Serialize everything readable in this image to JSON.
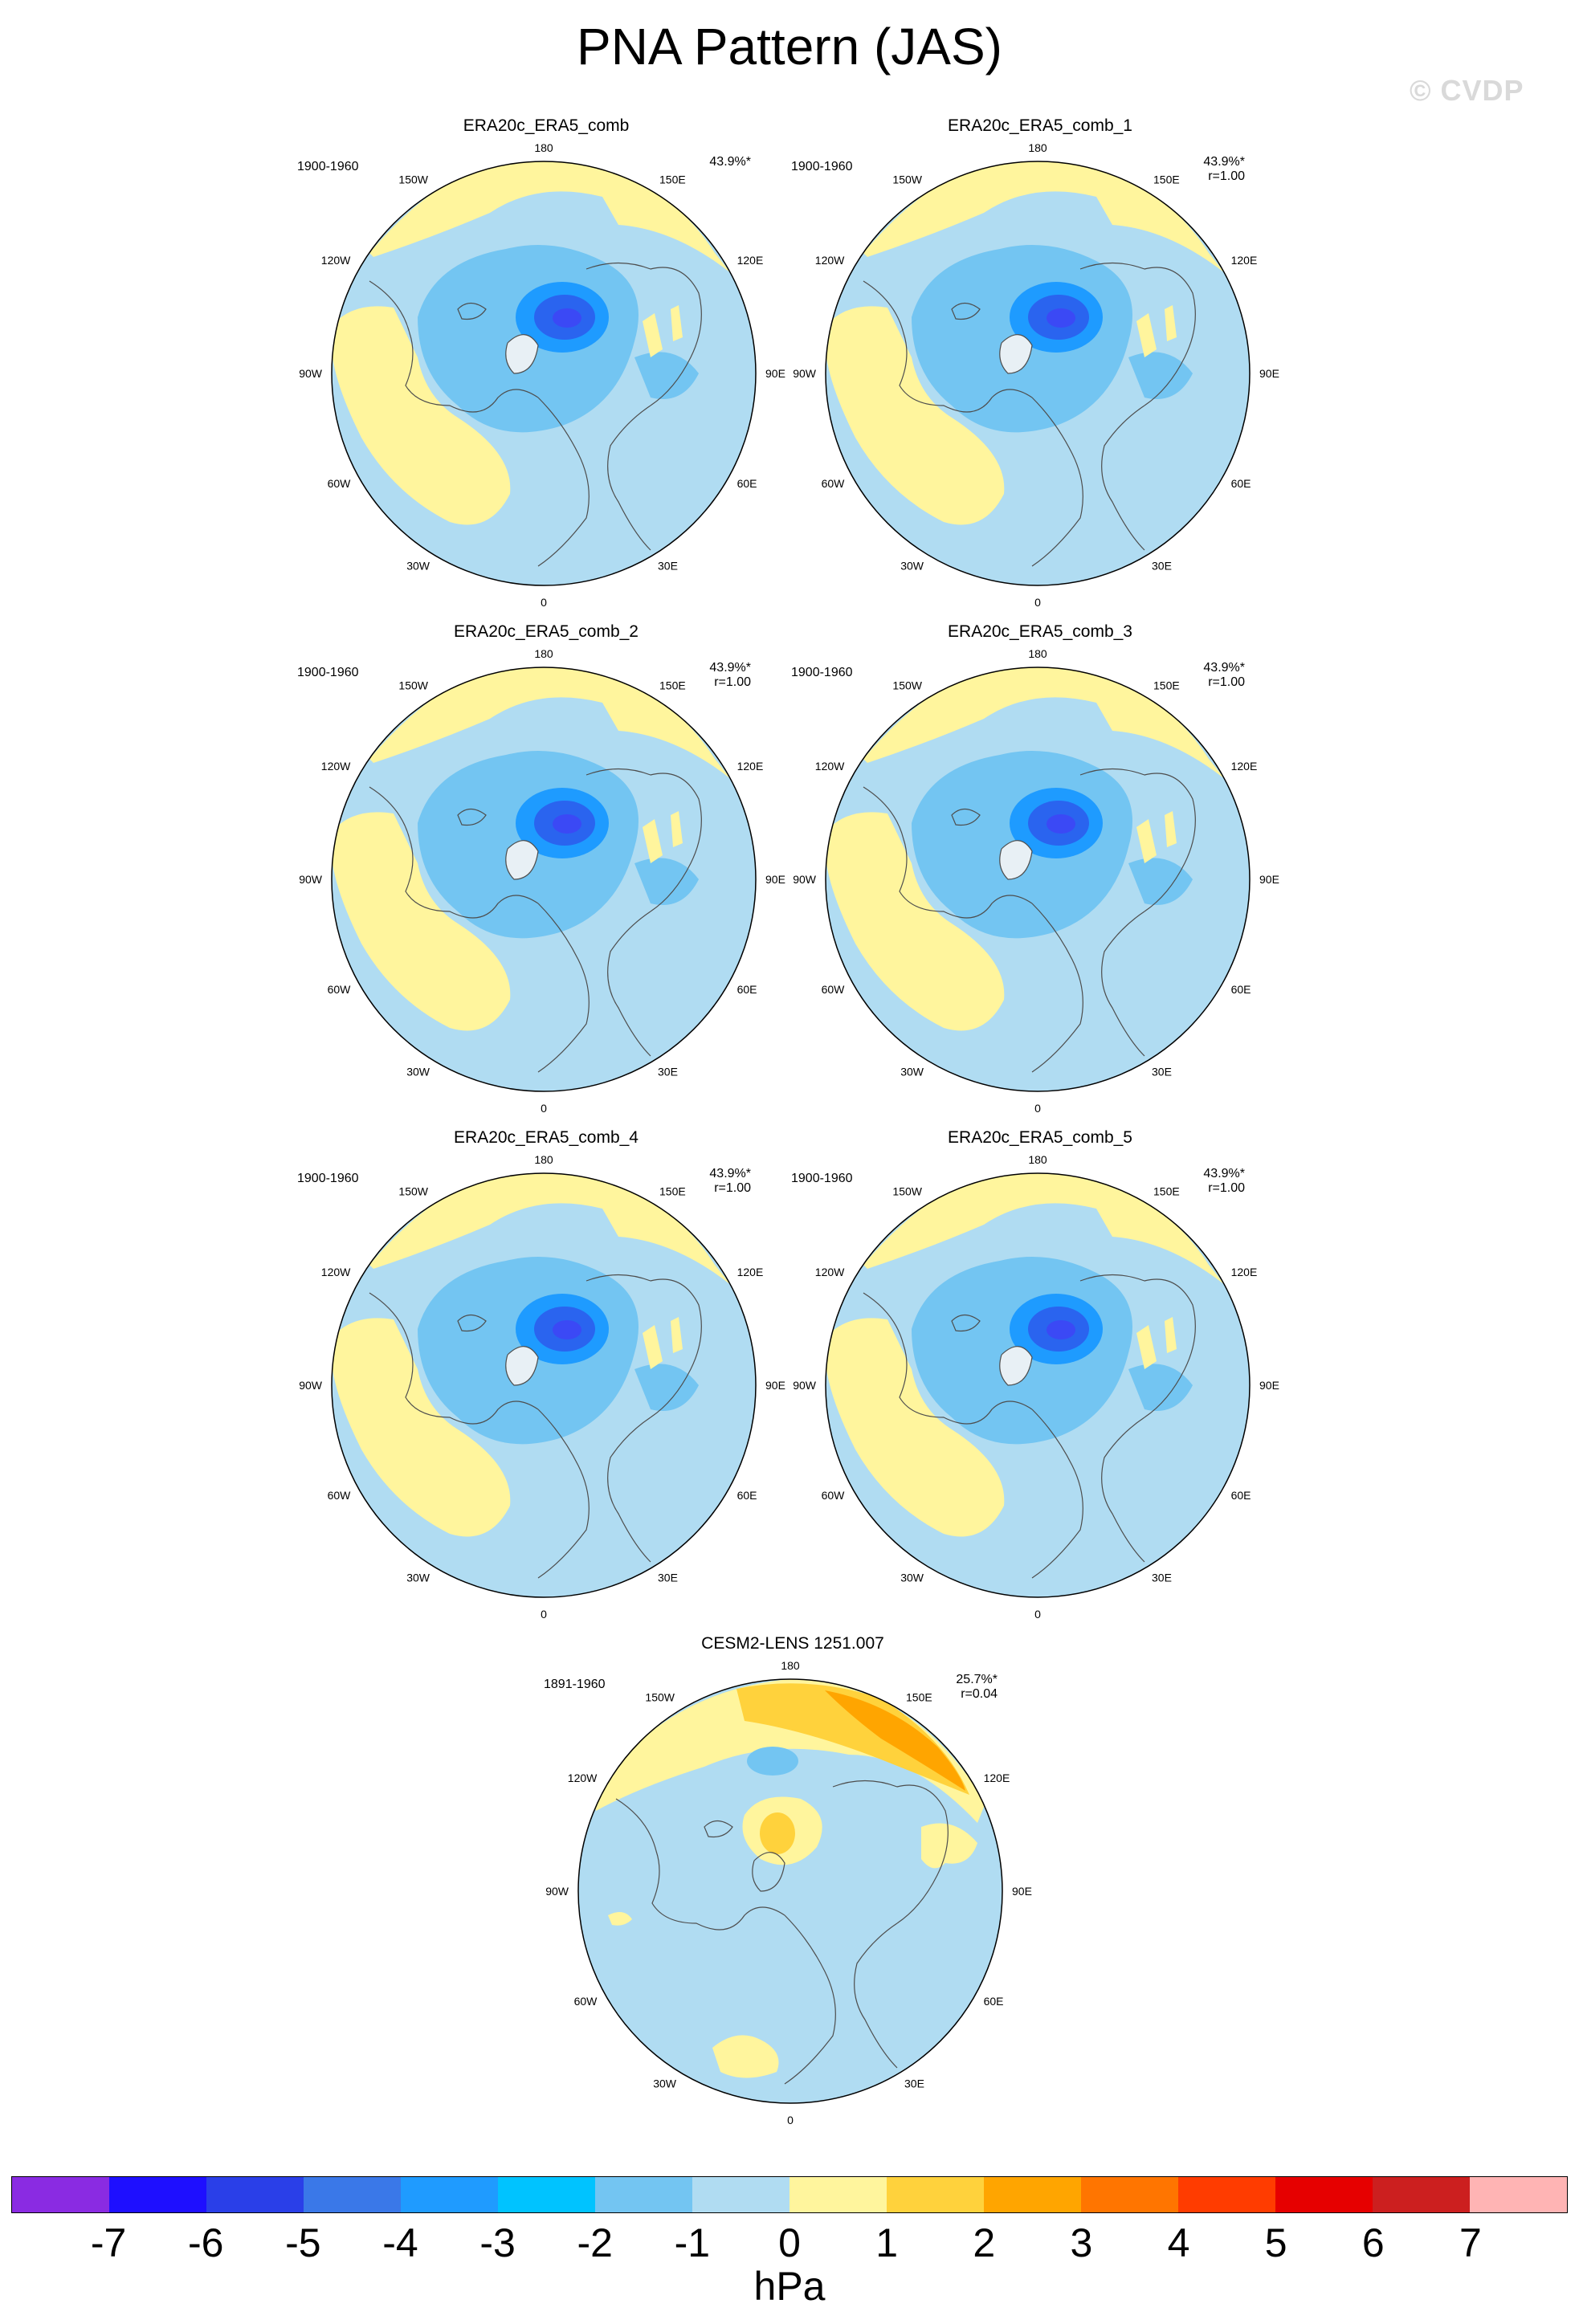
{
  "title": "PNA Pattern (JAS)",
  "watermark": "© CVDP",
  "colors": {
    "light_blue": "#b0dcf2",
    "mid_blue": "#73c5f2",
    "blue": "#1e9bff",
    "deep_blue": "#2a64ef",
    "core_blue": "#3b49f5",
    "light_yellow": "#fff59d",
    "yellow": "#ffd23c",
    "orange": "#ffa500",
    "coast": "#4d4d4d"
  },
  "panels": [
    {
      "title": "ERA20c_ERA5_comb",
      "period": "1900-1960",
      "pct": "43.9%*",
      "r": "",
      "pattern": "obs"
    },
    {
      "title": "ERA20c_ERA5_comb_1",
      "period": "1900-1960",
      "pct": "43.9%*",
      "r": "r=1.00",
      "pattern": "obs"
    },
    {
      "title": "ERA20c_ERA5_comb_2",
      "period": "1900-1960",
      "pct": "43.9%*",
      "r": "r=1.00",
      "pattern": "obs"
    },
    {
      "title": "ERA20c_ERA5_comb_3",
      "period": "1900-1960",
      "pct": "43.9%*",
      "r": "r=1.00",
      "pattern": "obs"
    },
    {
      "title": "ERA20c_ERA5_comb_4",
      "period": "1900-1960",
      "pct": "43.9%*",
      "r": "r=1.00",
      "pattern": "obs"
    },
    {
      "title": "ERA20c_ERA5_comb_5",
      "period": "1900-1960",
      "pct": "43.9%*",
      "r": "r=1.00",
      "pattern": "obs"
    },
    {
      "title": "CESM2-LENS 1251.007",
      "period": "1891-1960",
      "pct": "25.7%*",
      "r": "r=0.04",
      "pattern": "model"
    }
  ],
  "lon_labels": [
    "180",
    "150E",
    "120E",
    "90E",
    "60E",
    "30E",
    "0",
    "30W",
    "60W",
    "90W",
    "120W",
    "150W"
  ],
  "colorbar": {
    "unit": "hPa",
    "ticks": [
      "-7",
      "-6",
      "-5",
      "-4",
      "-3",
      "-2",
      "-1",
      "0",
      "1",
      "2",
      "3",
      "4",
      "5",
      "6",
      "7"
    ],
    "colors": [
      "#8a2be2",
      "#1e0fff",
      "#2a3fe8",
      "#3a78e8",
      "#1f9bff",
      "#00c3ff",
      "#73c5f2",
      "#b0dcf2",
      "#fff59d",
      "#ffd23c",
      "#ffa500",
      "#ff7500",
      "#ff3c00",
      "#e60000",
      "#cc1f1f",
      "#ffb4b4"
    ]
  }
}
